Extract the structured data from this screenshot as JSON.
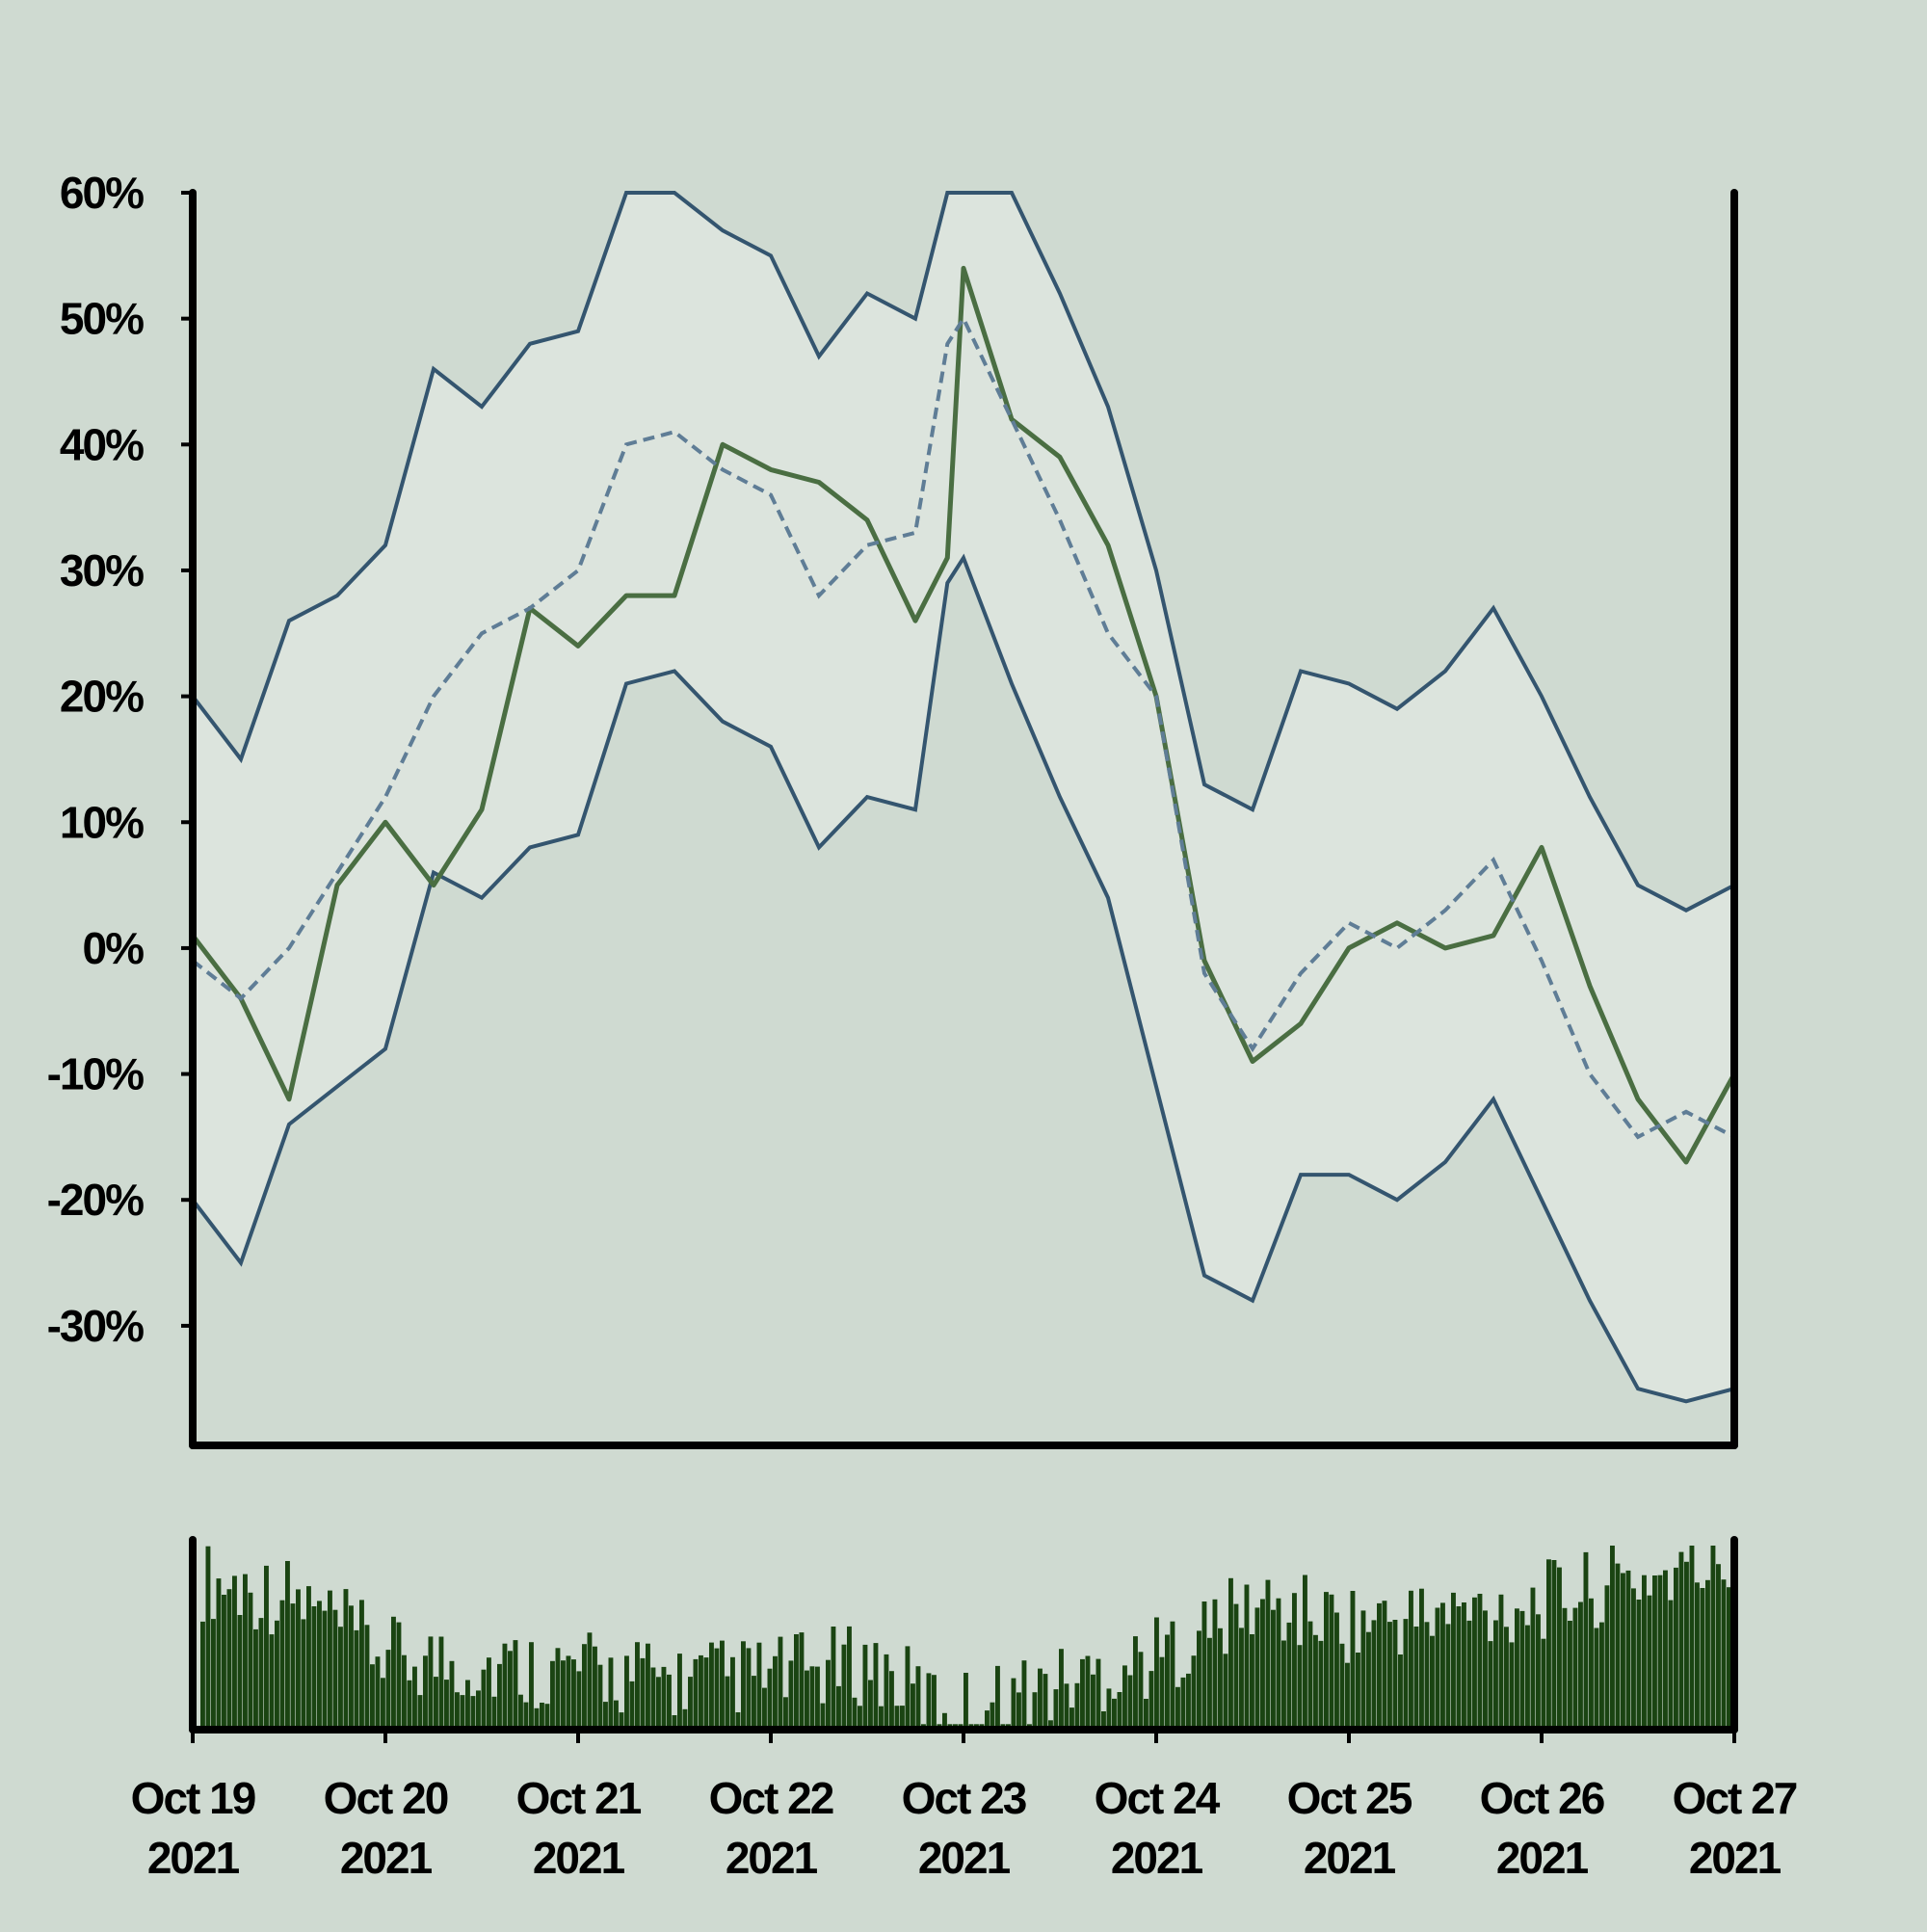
{
  "chart_data": {
    "type": "line",
    "title": "",
    "xlabel": "",
    "ylabel": "",
    "y_unit": "%",
    "ylim": [
      -39.5,
      60
    ],
    "yticks": [
      "60%",
      "50%",
      "40%",
      "30%",
      "20%",
      "10%",
      "0%",
      "-10%",
      "-20%",
      "-30%"
    ],
    "ytick_values": [
      60,
      50,
      40,
      30,
      20,
      10,
      0,
      -10,
      -20,
      -30
    ],
    "xlim": [
      "2021-10-19",
      "2021-10-27"
    ],
    "xticks": [
      {
        "date": "2021-10-19",
        "line1": "Oct 19",
        "line2": "2021"
      },
      {
        "date": "2021-10-20",
        "line1": "Oct 20",
        "line2": "2021"
      },
      {
        "date": "2021-10-21",
        "line1": "Oct 21",
        "line2": "2021"
      },
      {
        "date": "2021-10-22",
        "line1": "Oct 22",
        "line2": "2021"
      },
      {
        "date": "2021-10-23",
        "line1": "Oct 23",
        "line2": "2021"
      },
      {
        "date": "2021-10-24",
        "line1": "Oct 24",
        "line2": "2021"
      },
      {
        "date": "2021-10-25",
        "line1": "Oct 25",
        "line2": "2021"
      },
      {
        "date": "2021-10-26",
        "line1": "Oct 26",
        "line2": "2021"
      },
      {
        "date": "2021-10-27",
        "line1": "Oct 27",
        "line2": "2021"
      }
    ],
    "grid": false,
    "legend": "none",
    "colors": {
      "background": "#cfdad1",
      "band_fill": "#dce4dd",
      "price_line": "#4a6e42",
      "moving_average": "#5f7d96",
      "bands": "#34556f",
      "volume": "#1a4412",
      "axes": "#000000"
    },
    "series": [
      {
        "role": "price",
        "x": [
          "2021-10-19 00:00",
          "2021-10-19 06:00",
          "2021-10-19 12:00",
          "2021-10-19 18:00",
          "2021-10-20 00:00",
          "2021-10-20 06:00",
          "2021-10-20 12:00",
          "2021-10-20 18:00",
          "2021-10-21 00:00",
          "2021-10-21 06:00",
          "2021-10-21 12:00",
          "2021-10-21 18:00",
          "2021-10-22 00:00",
          "2021-10-22 06:00",
          "2021-10-22 12:00",
          "2021-10-22 18:00",
          "2021-10-22 22:00",
          "2021-10-23 00:00",
          "2021-10-23 06:00",
          "2021-10-23 12:00",
          "2021-10-23 18:00",
          "2021-10-24 00:00",
          "2021-10-24 06:00",
          "2021-10-24 12:00",
          "2021-10-24 18:00",
          "2021-10-25 00:00",
          "2021-10-25 06:00",
          "2021-10-25 12:00",
          "2021-10-25 18:00",
          "2021-10-26 00:00",
          "2021-10-26 06:00",
          "2021-10-26 12:00",
          "2021-10-26 18:00",
          "2021-10-27 00:00"
        ],
        "y": [
          1,
          -4,
          -12,
          5,
          10,
          5,
          11,
          27,
          24,
          28,
          28,
          40,
          38,
          37,
          34,
          26,
          31,
          54,
          42,
          39,
          32,
          20,
          -1,
          -9,
          -6,
          0,
          2,
          0,
          1,
          8,
          -3,
          -12,
          -17,
          -10
        ]
      },
      {
        "role": "moving-average",
        "x": [
          "2021-10-19 00:00",
          "2021-10-19 06:00",
          "2021-10-19 12:00",
          "2021-10-19 18:00",
          "2021-10-20 00:00",
          "2021-10-20 06:00",
          "2021-10-20 12:00",
          "2021-10-20 18:00",
          "2021-10-21 00:00",
          "2021-10-21 06:00",
          "2021-10-21 12:00",
          "2021-10-21 18:00",
          "2021-10-22 00:00",
          "2021-10-22 06:00",
          "2021-10-22 12:00",
          "2021-10-22 18:00",
          "2021-10-22 22:00",
          "2021-10-23 00:00",
          "2021-10-23 06:00",
          "2021-10-23 12:00",
          "2021-10-23 18:00",
          "2021-10-24 00:00",
          "2021-10-24 06:00",
          "2021-10-24 12:00",
          "2021-10-24 18:00",
          "2021-10-25 00:00",
          "2021-10-25 06:00",
          "2021-10-25 12:00",
          "2021-10-25 18:00",
          "2021-10-26 00:00",
          "2021-10-26 06:00",
          "2021-10-26 12:00",
          "2021-10-26 18:00",
          "2021-10-27 00:00"
        ],
        "y": [
          -1,
          -4,
          0,
          6,
          12,
          20,
          25,
          27,
          30,
          40,
          41,
          38,
          36,
          28,
          32,
          33,
          48,
          50,
          42,
          34,
          25,
          20,
          -2,
          -8,
          -2,
          2,
          0,
          3,
          7,
          -1,
          -10,
          -15,
          -13,
          -15
        ]
      },
      {
        "role": "upper-band",
        "x": [
          "2021-10-19 00:00",
          "2021-10-19 06:00",
          "2021-10-19 12:00",
          "2021-10-19 18:00",
          "2021-10-20 00:00",
          "2021-10-20 06:00",
          "2021-10-20 12:00",
          "2021-10-20 18:00",
          "2021-10-21 00:00",
          "2021-10-21 06:00",
          "2021-10-21 12:00",
          "2021-10-21 18:00",
          "2021-10-22 00:00",
          "2021-10-22 06:00",
          "2021-10-22 12:00",
          "2021-10-22 18:00",
          "2021-10-22 22:00",
          "2021-10-23 00:00",
          "2021-10-23 06:00",
          "2021-10-23 12:00",
          "2021-10-23 18:00",
          "2021-10-24 00:00",
          "2021-10-24 06:00",
          "2021-10-24 12:00",
          "2021-10-24 18:00",
          "2021-10-25 00:00",
          "2021-10-25 06:00",
          "2021-10-25 12:00",
          "2021-10-25 18:00",
          "2021-10-26 00:00",
          "2021-10-26 06:00",
          "2021-10-26 12:00",
          "2021-10-26 18:00",
          "2021-10-27 00:00"
        ],
        "y": [
          20,
          15,
          26,
          28,
          32,
          46,
          43,
          48,
          49,
          60,
          60,
          57,
          55,
          47,
          52,
          50,
          60,
          60,
          60,
          52,
          43,
          30,
          13,
          11,
          22,
          21,
          19,
          22,
          27,
          20,
          12,
          5,
          3,
          5
        ]
      },
      {
        "role": "lower-band",
        "x": [
          "2021-10-19 00:00",
          "2021-10-19 06:00",
          "2021-10-19 12:00",
          "2021-10-19 18:00",
          "2021-10-20 00:00",
          "2021-10-20 06:00",
          "2021-10-20 12:00",
          "2021-10-20 18:00",
          "2021-10-21 00:00",
          "2021-10-21 06:00",
          "2021-10-21 12:00",
          "2021-10-21 18:00",
          "2021-10-22 00:00",
          "2021-10-22 06:00",
          "2021-10-22 12:00",
          "2021-10-22 18:00",
          "2021-10-22 22:00",
          "2021-10-23 00:00",
          "2021-10-23 06:00",
          "2021-10-23 12:00",
          "2021-10-23 18:00",
          "2021-10-24 00:00",
          "2021-10-24 06:00",
          "2021-10-24 12:00",
          "2021-10-24 18:00",
          "2021-10-25 00:00",
          "2021-10-25 06:00",
          "2021-10-25 12:00",
          "2021-10-25 18:00",
          "2021-10-26 00:00",
          "2021-10-26 06:00",
          "2021-10-26 12:00",
          "2021-10-26 18:00",
          "2021-10-27 00:00"
        ],
        "y": [
          -20,
          -25,
          -14,
          -11,
          -8,
          6,
          4,
          8,
          9,
          21,
          22,
          18,
          16,
          8,
          12,
          11,
          29,
          31,
          21,
          12,
          4,
          -11,
          -26,
          -28,
          -18,
          -18,
          -20,
          -17,
          -12,
          -20,
          -28,
          -35,
          -36,
          -35
        ]
      }
    ],
    "volume": {
      "x": [
        "2021-10-19",
        "2021-10-19 12:00",
        "2021-10-20",
        "2021-10-20 12:00",
        "2021-10-21",
        "2021-10-21 12:00",
        "2021-10-22",
        "2021-10-22 12:00",
        "2021-10-22 22:00",
        "2021-10-23 12:00",
        "2021-10-24",
        "2021-10-24 12:00",
        "2021-10-25",
        "2021-10-25 12:00",
        "2021-10-26",
        "2021-10-26 12:00",
        "2021-10-27"
      ],
      "y": [
        0.82,
        0.72,
        0.4,
        0.35,
        0.32,
        0.27,
        0.3,
        0.36,
        0.1,
        0.25,
        0.4,
        0.68,
        0.58,
        0.62,
        0.7,
        0.82,
        0.9
      ]
    }
  }
}
